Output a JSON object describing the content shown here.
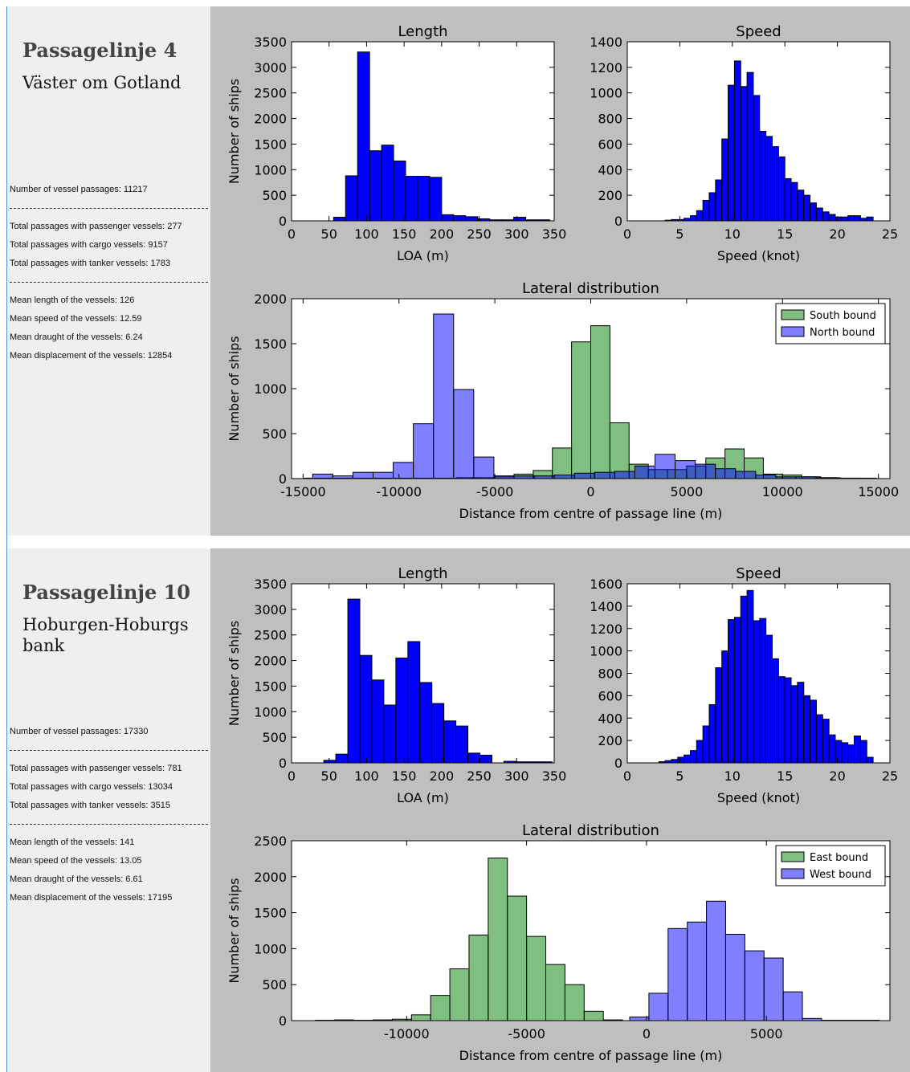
{
  "panels": [
    {
      "title": "Passagelinje 4",
      "subtitle": "Väster om Gotland",
      "passages": "Number of vessel passages: 11217",
      "totals": [
        "Total passages with passenger vessels: 277",
        "Total passages with cargo vessels: 9157",
        "Total passages with tanker vessels: 1783"
      ],
      "means": [
        "Mean length of the vessels: 126",
        "Mean speed of the vessels: 12.59",
        "Mean draught of the vessels: 6.24",
        "Mean displacement of the vessels: 12854"
      ]
    },
    {
      "title": "Passagelinje 10",
      "subtitle": "Hoburgen-Hoburgs bank",
      "passages": "Number of vessel passages: 17330",
      "totals": [
        "Total passages with passenger vessels: 781",
        "Total passages with cargo vessels: 13034",
        "Total passages with tanker vessels: 3515"
      ],
      "means": [
        "Mean length of the vessels: 141",
        "Mean speed of the vessels: 13.05",
        "Mean draught of the vessels: 6.61",
        "Mean displacement of the vessels: 17195"
      ]
    }
  ],
  "chart_data": [
    {
      "type": "histogram",
      "title": "Length",
      "xlabel": "LOA (m)",
      "ylabel": "Number of ships",
      "color": "#0000ff",
      "bins": [
        56,
        72,
        88,
        104,
        120,
        136,
        152,
        168,
        184,
        200,
        216,
        232,
        248,
        264,
        280,
        296,
        312,
        328,
        344
      ],
      "values": [
        70,
        880,
        3300,
        1370,
        1480,
        1170,
        870,
        870,
        850,
        120,
        100,
        80,
        40,
        20,
        20,
        70,
        20,
        20
      ],
      "xlim": [
        0,
        350
      ],
      "xticks": [
        0,
        50,
        100,
        150,
        200,
        250,
        300,
        350
      ],
      "ylim": [
        0,
        3500
      ],
      "yticks": [
        0,
        500,
        1000,
        1500,
        2000,
        2500,
        3000,
        3500
      ]
    },
    {
      "type": "histogram",
      "title": "Speed",
      "xlabel": "Speed (knot)",
      "ylabel": "",
      "color": "#0000ff",
      "bins": [
        3.0,
        3.6,
        4.2,
        4.8,
        5.4,
        6.0,
        6.6,
        7.2,
        7.8,
        8.4,
        9.0,
        9.6,
        10.2,
        10.8,
        11.4,
        12.0,
        12.6,
        13.2,
        13.8,
        14.4,
        15.0,
        15.6,
        16.2,
        16.8,
        17.4,
        18.0,
        18.6,
        19.2,
        19.8,
        20.4,
        21.0,
        21.6,
        22.2,
        22.8,
        23.4,
        24.0
      ],
      "values": [
        0,
        5,
        10,
        10,
        20,
        40,
        80,
        160,
        220,
        320,
        640,
        1060,
        1250,
        1050,
        1160,
        980,
        700,
        660,
        580,
        500,
        330,
        300,
        240,
        200,
        140,
        100,
        70,
        50,
        30,
        30,
        40,
        40,
        20,
        30,
        0
      ],
      "xlim": [
        0,
        25
      ],
      "xticks": [
        0,
        5,
        10,
        15,
        20,
        25
      ],
      "ylim": [
        0,
        1400
      ],
      "yticks": [
        0,
        200,
        400,
        600,
        800,
        1000,
        1200,
        1400
      ]
    },
    {
      "type": "histogram",
      "title": "Lateral distribution",
      "xlabel": "Distance from centre of passage line (m)",
      "ylabel": "Number of ships",
      "legend": "upper right",
      "series": [
        {
          "name": "South bound",
          "color": "#008000",
          "opacity": 0.5,
          "bins": [
            -15000,
            -14000,
            -13000,
            -12000,
            -11000,
            -10000,
            -9000,
            -8000,
            -7000,
            -6000,
            -5000,
            -4000,
            -3000,
            -2000,
            -1000,
            0,
            1000,
            2000,
            3000,
            4000,
            5000,
            6000,
            7000,
            8000,
            9000,
            10000,
            11000,
            12000,
            13000,
            14000,
            15000
          ],
          "values": [
            5,
            5,
            5,
            5,
            5,
            5,
            5,
            5,
            10,
            10,
            20,
            50,
            90,
            340,
            1520,
            1700,
            620,
            160,
            100,
            100,
            140,
            230,
            330,
            230,
            50,
            40,
            20,
            10,
            5,
            0
          ]
        },
        {
          "name": "North bound",
          "color": "#0000ff",
          "opacity": 0.5,
          "bins": [
            -14500,
            -13450,
            -12400,
            -11350,
            -10300,
            -9250,
            -8200,
            -7150,
            -6100,
            -5050,
            -4000,
            -2950,
            -1900,
            -850,
            200,
            1250,
            2300,
            3350,
            4400,
            5450,
            6500,
            7550,
            8600,
            9650,
            10700,
            11750,
            12800,
            13850,
            14900
          ],
          "values": [
            50,
            30,
            70,
            70,
            180,
            610,
            1830,
            990,
            240,
            30,
            30,
            30,
            40,
            60,
            70,
            80,
            140,
            270,
            200,
            160,
            110,
            80,
            40,
            20,
            20,
            10,
            5,
            5
          ]
        }
      ],
      "xlim": [
        -15600,
        15600
      ],
      "xticks": [
        -15000,
        -10000,
        -5000,
        0,
        5000,
        10000,
        15000
      ],
      "ylim": [
        0,
        2000
      ],
      "yticks": [
        0,
        500,
        1000,
        1500,
        2000
      ]
    },
    {
      "type": "histogram",
      "title": "Length",
      "xlabel": "LOA (m)",
      "ylabel": "Number of ships",
      "color": "#0000ff",
      "bins": [
        43,
        59,
        75,
        91,
        107,
        123,
        139,
        155,
        171,
        187,
        203,
        219,
        235,
        251,
        267,
        283,
        299,
        315,
        331,
        347
      ],
      "values": [
        50,
        170,
        3200,
        2100,
        1620,
        1130,
        2050,
        2370,
        1570,
        1160,
        820,
        720,
        190,
        150,
        0,
        30,
        20,
        20,
        20
      ],
      "xlim": [
        0,
        350
      ],
      "xticks": [
        0,
        50,
        100,
        150,
        200,
        250,
        300,
        350
      ],
      "ylim": [
        0,
        3500
      ],
      "yticks": [
        0,
        500,
        1000,
        1500,
        2000,
        2500,
        3000,
        3500
      ]
    },
    {
      "type": "histogram",
      "title": "Speed",
      "xlabel": "Speed (knot)",
      "ylabel": "",
      "color": "#0000ff",
      "bins": [
        3.0,
        3.6,
        4.2,
        4.8,
        5.4,
        6.0,
        6.6,
        7.2,
        7.8,
        8.4,
        9.0,
        9.6,
        10.2,
        10.8,
        11.4,
        12.0,
        12.6,
        13.2,
        13.8,
        14.4,
        15.0,
        15.6,
        16.2,
        16.8,
        17.4,
        18.0,
        18.6,
        19.2,
        19.8,
        20.4,
        21.0,
        21.6,
        22.2,
        22.8,
        23.4,
        24.0
      ],
      "values": [
        10,
        20,
        30,
        50,
        70,
        110,
        200,
        330,
        520,
        850,
        1000,
        1280,
        1300,
        1490,
        1540,
        1270,
        1290,
        1140,
        930,
        770,
        760,
        690,
        720,
        600,
        560,
        430,
        390,
        250,
        200,
        180,
        160,
        240,
        200,
        50,
        0
      ],
      "xlim": [
        0,
        25
      ],
      "xticks": [
        0,
        5,
        10,
        15,
        20,
        25
      ],
      "ylim": [
        0,
        1600
      ],
      "yticks": [
        0,
        200,
        400,
        600,
        800,
        1000,
        1200,
        1400,
        1600
      ]
    },
    {
      "type": "histogram",
      "title": "Lateral distribution",
      "xlabel": "Distance from centre of passage line (m)",
      "ylabel": "Number of ships",
      "legend": "upper right",
      "series": [
        {
          "name": "East bound",
          "color": "#008000",
          "opacity": 0.5,
          "bins": [
            -14600,
            -13800,
            -13000,
            -12200,
            -11400,
            -10600,
            -9800,
            -9000,
            -8200,
            -7400,
            -6600,
            -5800,
            -5000,
            -4200,
            -3400,
            -2600,
            -1800,
            -1000
          ],
          "values": [
            0,
            5,
            10,
            5,
            10,
            20,
            80,
            350,
            720,
            1190,
            2260,
            1730,
            1170,
            780,
            500,
            130,
            10
          ]
        },
        {
          "name": "West bound",
          "color": "#0000ff",
          "opacity": 0.5,
          "bins": [
            -700,
            100,
            900,
            1700,
            2500,
            3300,
            4100,
            4900,
            5700,
            6500,
            7300,
            8100,
            8900,
            9700
          ],
          "values": [
            50,
            380,
            1280,
            1370,
            1660,
            1200,
            970,
            870,
            400,
            30,
            5,
            5,
            5
          ]
        }
      ],
      "xlim": [
        -14800,
        10150
      ],
      "xticks": [
        -10000,
        -5000,
        0,
        5000
      ],
      "ylim": [
        0,
        2500
      ],
      "yticks": [
        0,
        500,
        1000,
        1500,
        2000,
        2500
      ]
    }
  ]
}
